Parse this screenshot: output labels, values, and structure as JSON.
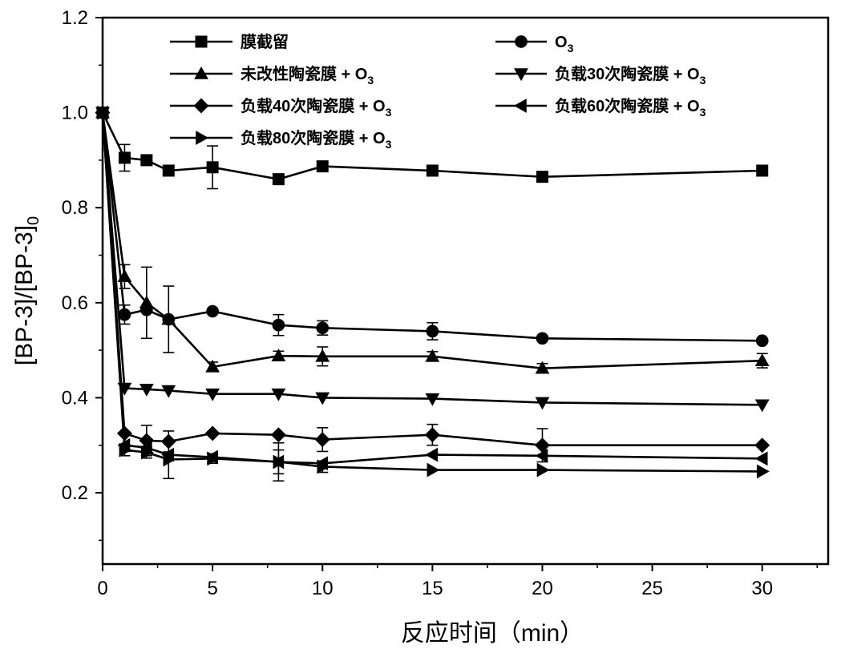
{
  "chart_data": {
    "type": "line",
    "xlabel": "反应时间（min）",
    "ylabel": "[BP-3]/[BP-3]",
    "ylabel_sub": "0",
    "xlim": [
      0,
      33
    ],
    "ylim": [
      0.05,
      1.2
    ],
    "xticks": [
      0,
      5,
      10,
      15,
      20,
      25,
      30
    ],
    "yticks": [
      0.2,
      0.4,
      0.6,
      0.8,
      1.0,
      1.2
    ],
    "ytick_labels": [
      "0.2",
      "0.4",
      "0.6",
      "0.8",
      "1.0",
      "1.2"
    ],
    "grid": false,
    "legend_position": "top",
    "series": [
      {
        "name": "膜截留",
        "name_sub": "",
        "marker": "square",
        "x": [
          0,
          1,
          2,
          3,
          5,
          8,
          10,
          15,
          20,
          30
        ],
        "y": [
          1.0,
          0.905,
          0.9,
          0.878,
          0.885,
          0.86,
          0.887,
          0.878,
          0.865,
          0.878
        ],
        "err": [
          0,
          0.028,
          0,
          0,
          0.045,
          0,
          0,
          0,
          0,
          0
        ]
      },
      {
        "name": "O",
        "name_sub": "3",
        "marker": "circle",
        "x": [
          0,
          1,
          2,
          3,
          5,
          8,
          10,
          15,
          20,
          30
        ],
        "y": [
          1.0,
          0.575,
          0.585,
          0.565,
          0.582,
          0.553,
          0.547,
          0.54,
          0.525,
          0.52
        ],
        "err": [
          0,
          0.02,
          0,
          0,
          0,
          0.022,
          0.015,
          0.018,
          0,
          0
        ]
      },
      {
        "name": "未改性陶瓷膜 + O",
        "name_sub": "3",
        "marker": "triangle-up",
        "x": [
          0,
          1,
          2,
          3,
          5,
          8,
          10,
          15,
          20,
          30
        ],
        "y": [
          1.0,
          0.655,
          0.6,
          0.565,
          0.465,
          0.488,
          0.487,
          0.487,
          0.462,
          0.478
        ],
        "err": [
          0,
          0.025,
          0.075,
          0.07,
          0.01,
          0.01,
          0.02,
          0.01,
          0.01,
          0.015
        ]
      },
      {
        "name": "负载30次陶瓷膜 + O",
        "name_sub": "3",
        "marker": "triangle-down",
        "x": [
          0,
          1,
          2,
          3,
          5,
          8,
          10,
          15,
          20,
          30
        ],
        "y": [
          1.0,
          0.42,
          0.418,
          0.415,
          0.408,
          0.408,
          0.4,
          0.398,
          0.39,
          0.385
        ],
        "err": [
          0,
          0,
          0,
          0,
          0,
          0,
          0,
          0,
          0,
          0
        ]
      },
      {
        "name": "负载40次陶瓷膜 + O",
        "name_sub": "3",
        "marker": "diamond",
        "x": [
          0,
          1,
          2,
          3,
          5,
          8,
          10,
          15,
          20,
          30
        ],
        "y": [
          1.0,
          0.325,
          0.31,
          0.308,
          0.325,
          0.322,
          0.312,
          0.322,
          0.3,
          0.3
        ],
        "err": [
          0,
          0,
          0.032,
          0.022,
          0,
          0,
          0.025,
          0.022,
          0.035,
          0
        ]
      },
      {
        "name": "负载60次陶瓷膜 + O",
        "name_sub": "3",
        "marker": "triangle-left",
        "x": [
          0,
          1,
          2,
          3,
          5,
          8,
          10,
          15,
          20,
          30
        ],
        "y": [
          1.0,
          0.3,
          0.295,
          0.28,
          0.275,
          0.265,
          0.262,
          0.28,
          0.278,
          0.272
        ],
        "err": [
          0,
          0,
          0,
          0,
          0,
          0.04,
          0,
          0,
          0,
          0
        ]
      },
      {
        "name": "负载80次陶瓷膜 + O",
        "name_sub": "3",
        "marker": "triangle-right",
        "x": [
          0,
          1,
          2,
          3,
          5,
          8,
          10,
          15,
          20,
          30
        ],
        "y": [
          1.0,
          0.29,
          0.285,
          0.27,
          0.272,
          0.265,
          0.255,
          0.248,
          0.248,
          0.245
        ],
        "err": [
          0,
          0.012,
          0.012,
          0.04,
          0.01,
          0.025,
          0.012,
          0,
          0,
          0
        ]
      }
    ]
  }
}
